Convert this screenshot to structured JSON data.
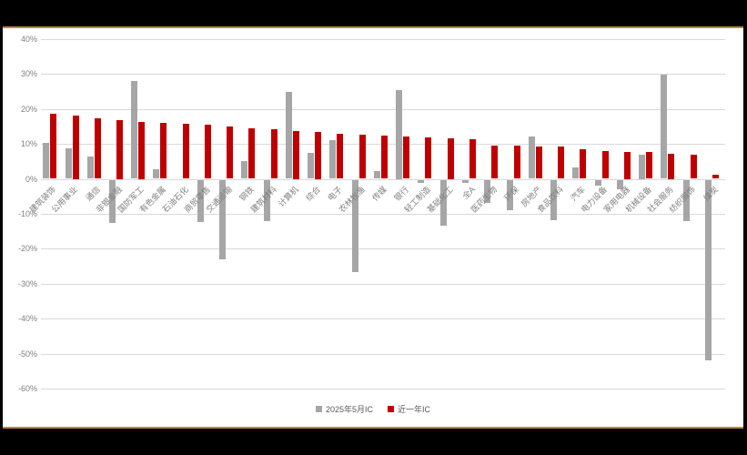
{
  "frame": {
    "background": "#000000",
    "panel_background": "#FFFFFF",
    "border_color": "#B8873B"
  },
  "colors": {
    "gridline": "#D9D9D9",
    "axis_text": "#7F7F7F",
    "legend_text": "#595959",
    "series_gray": "#A6A6A6",
    "series_red": "#C00000"
  },
  "chart_data": {
    "type": "bar",
    "title": "",
    "xlabel": "",
    "ylabel": "",
    "ylim": [
      -60,
      40
    ],
    "ytick_step": 10,
    "ytick_labels": [
      "40%",
      "30%",
      "20%",
      "10%",
      "0%",
      "-10%",
      "-20%",
      "-30%",
      "-40%",
      "-50%",
      "-60%"
    ],
    "grid": true,
    "legend_position": "bottom-center",
    "categories": [
      "建筑装饰",
      "公用事业",
      "通信",
      "非银金融",
      "国防军工",
      "有色金属",
      "石油石化",
      "商贸零售",
      "交通运输",
      "钢铁",
      "建筑材料",
      "计算机",
      "综合",
      "电子",
      "农林牧渔",
      "传媒",
      "银行",
      "轻工制造",
      "基础化工",
      "全A",
      "医药生物",
      "环保",
      "房地产",
      "食品饮料",
      "汽车",
      "电力设备",
      "家用电器",
      "机械设备",
      "社会服务",
      "纺织服饰",
      "煤炭"
    ],
    "series": [
      {
        "name": "2025年5月IC",
        "color": "#A6A6A6",
        "values": [
          10.3,
          8.7,
          6.4,
          -12.3,
          27.9,
          2.8,
          0.0,
          -12.2,
          -22.7,
          5.1,
          -11.9,
          24.9,
          7.4,
          11.1,
          -26.3,
          2.1,
          25.4,
          -0.9,
          -13.2,
          -0.8,
          -6.5,
          -8.6,
          12.0,
          -11.7,
          3.3,
          -1.8,
          -2.7,
          6.9,
          29.9,
          -11.9,
          -51.6
        ]
      },
      {
        "name": "近一年IC",
        "color": "#C00000",
        "values": [
          18.6,
          18.1,
          17.4,
          16.8,
          16.4,
          16.1,
          15.8,
          15.4,
          15.0,
          14.4,
          14.1,
          13.8,
          13.4,
          13.0,
          12.6,
          12.3,
          12.0,
          11.8,
          11.6,
          11.4,
          9.6,
          9.4,
          9.3,
          9.2,
          8.4,
          8.0,
          7.8,
          7.7,
          7.3,
          7.0,
          1.2
        ]
      }
    ]
  },
  "legend": {
    "items": [
      {
        "label": "2025年5月IC",
        "color": "#A6A6A6"
      },
      {
        "label": "近一年IC",
        "color": "#C00000"
      }
    ]
  }
}
